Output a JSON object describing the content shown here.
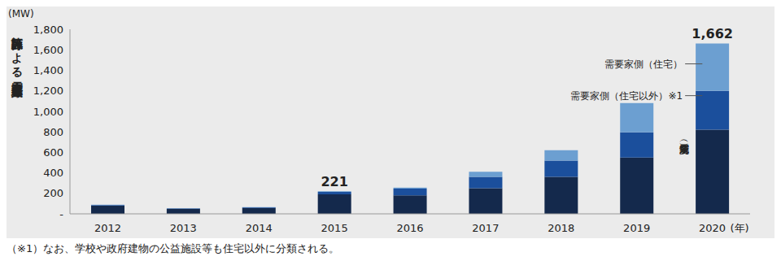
{
  "chart_data": {
    "type": "bar",
    "stacked": true,
    "y_unit": "(MW)",
    "y_label": "施設区分による電力貯蔵導入量",
    "x_unit": "(年)",
    "categories": [
      "2012",
      "2013",
      "2014",
      "2015",
      "2016",
      "2017",
      "2018",
      "2019",
      "2020"
    ],
    "series": [
      {
        "name": "系統側（変電所）",
        "color": "#14294c",
        "values": [
          80,
          50,
          58,
          190,
          180,
          250,
          360,
          550,
          820
        ]
      },
      {
        "name": "需要家側（住宅以外）※1",
        "color": "#1b4f9c",
        "values": [
          6,
          3,
          5,
          25,
          65,
          110,
          160,
          245,
          380
        ]
      },
      {
        "name": "需要家側（住宅）",
        "color": "#6c9fd1",
        "values": [
          3,
          2,
          3,
          6,
          10,
          50,
          100,
          285,
          462
        ]
      }
    ],
    "ylim": [
      0,
      1800
    ],
    "yticks": [
      {
        "value": 0,
        "label": "-"
      },
      200,
      400,
      600,
      800,
      {
        "value": 1000,
        "label": "1,000"
      },
      {
        "value": 1200,
        "label": "1,200"
      },
      {
        "value": 1400,
        "label": "1,400"
      },
      {
        "value": 1600,
        "label": "1,600"
      },
      {
        "value": 1800,
        "label": "1,800"
      }
    ],
    "grid": false,
    "annotations": [
      {
        "category": "2015",
        "text": "221"
      },
      {
        "category": "2020",
        "text": "1,662"
      }
    ],
    "footnote": "（※1）なお、学校や政府建物の公益施設等も住宅以外に分類される。"
  }
}
